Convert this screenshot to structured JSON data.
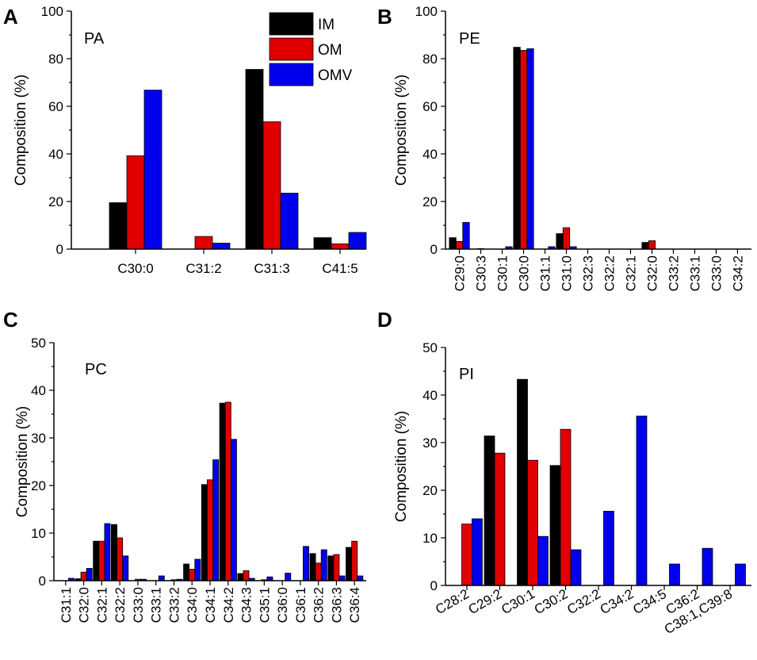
{
  "colors": {
    "IM": "#000000",
    "OM": "#e00000",
    "OMV": "#0000ee"
  },
  "legend": [
    "IM",
    "OM",
    "OMV"
  ],
  "chart_data": [
    {
      "panel": "A",
      "type": "bar",
      "title": "PA",
      "ylabel": "Composition (%)",
      "xlabel": "",
      "ylim": [
        0,
        100
      ],
      "yticks": [
        0,
        20,
        40,
        60,
        80,
        100
      ],
      "x_tick_rotation": 0,
      "categories": [
        "C30:0",
        "C31:2",
        "C31:3",
        "C41:5"
      ],
      "series": [
        {
          "name": "IM",
          "values": [
            19.5,
            0,
            75.5,
            4.8
          ]
        },
        {
          "name": "OM",
          "values": [
            39.2,
            5.3,
            53.5,
            2.2
          ]
        },
        {
          "name": "OMV",
          "values": [
            66.8,
            2.5,
            23.5,
            7.0
          ]
        }
      ],
      "legend_position": "top-right"
    },
    {
      "panel": "B",
      "type": "bar",
      "title": "PE",
      "ylabel": "Composition (%)",
      "xlabel": "",
      "ylim": [
        0,
        100
      ],
      "yticks": [
        0,
        20,
        40,
        60,
        80,
        100
      ],
      "x_tick_rotation": -90,
      "categories": [
        "C29:0",
        "C30:3",
        "C30:1",
        "C30:0",
        "C31:1",
        "C31:0",
        "C32:3",
        "C32:2",
        "C32:1",
        "C32:0",
        "C33:2",
        "C33:1",
        "C33:0",
        "C34:2"
      ],
      "series": [
        {
          "name": "IM",
          "values": [
            4.8,
            0,
            0,
            84.8,
            0,
            6.5,
            0,
            0,
            0,
            2.8,
            0,
            0,
            0,
            0
          ]
        },
        {
          "name": "OM",
          "values": [
            3.2,
            0.2,
            0,
            83.5,
            0,
            9.0,
            0,
            0,
            0,
            3.5,
            0,
            0,
            0,
            0
          ]
        },
        {
          "name": "OMV",
          "values": [
            11.2,
            0,
            1.0,
            84.2,
            1.0,
            1.0,
            0,
            0,
            0,
            0,
            0,
            0,
            0,
            0
          ]
        }
      ]
    },
    {
      "panel": "C",
      "type": "bar",
      "title": "PC",
      "ylabel": "Composition (%)",
      "xlabel": "",
      "ylim": [
        0,
        50
      ],
      "yticks": [
        0,
        10,
        20,
        30,
        40,
        50
      ],
      "x_tick_rotation": -90,
      "categories": [
        "C31:1",
        "C32:0",
        "C32:1",
        "C32:2",
        "C33:0",
        "C33:1",
        "C33:2",
        "C34:0",
        "C34:1",
        "C34:2",
        "C34:3",
        "C35:1",
        "C36:0",
        "C36:1",
        "C36:2",
        "C36:3",
        "C36:4"
      ],
      "series": [
        {
          "name": "IM",
          "values": [
            0,
            0.4,
            8.3,
            11.8,
            0,
            0,
            0,
            3.5,
            20.2,
            37.3,
            1.5,
            0,
            0,
            0,
            5.7,
            5.2,
            7.0
          ]
        },
        {
          "name": "OM",
          "values": [
            0,
            1.8,
            8.3,
            9.0,
            0.3,
            0,
            0.2,
            2.4,
            21.2,
            37.5,
            2.1,
            0.2,
            0,
            0,
            3.7,
            5.5,
            8.3
          ]
        },
        {
          "name": "OMV",
          "values": [
            0.5,
            2.6,
            12.0,
            5.2,
            0.3,
            1.0,
            0.3,
            4.5,
            25.4,
            29.7,
            0.5,
            0.8,
            1.6,
            7.2,
            6.5,
            1.0,
            1.0
          ]
        }
      ]
    },
    {
      "panel": "D",
      "type": "bar",
      "title": "PI",
      "ylabel": "Composition (%)",
      "xlabel": "",
      "ylim": [
        0,
        50
      ],
      "yticks": [
        0,
        10,
        20,
        30,
        40,
        50
      ],
      "x_tick_rotation": -30,
      "categories": [
        "C28:2",
        "C29:2",
        "C30:1",
        "C30:2",
        "C32:2",
        "C34:2",
        "C34:5",
        "C36:2",
        "C38:1,C39:8"
      ],
      "series": [
        {
          "name": "IM",
          "values": [
            0,
            31.4,
            43.3,
            25.2,
            0,
            0,
            0,
            0,
            0
          ]
        },
        {
          "name": "OM",
          "values": [
            12.9,
            27.8,
            26.3,
            32.8,
            0,
            0,
            0,
            0,
            0
          ]
        },
        {
          "name": "OMV",
          "values": [
            14.0,
            0,
            10.3,
            7.5,
            15.6,
            35.6,
            4.5,
            7.8,
            4.5
          ]
        }
      ]
    }
  ]
}
